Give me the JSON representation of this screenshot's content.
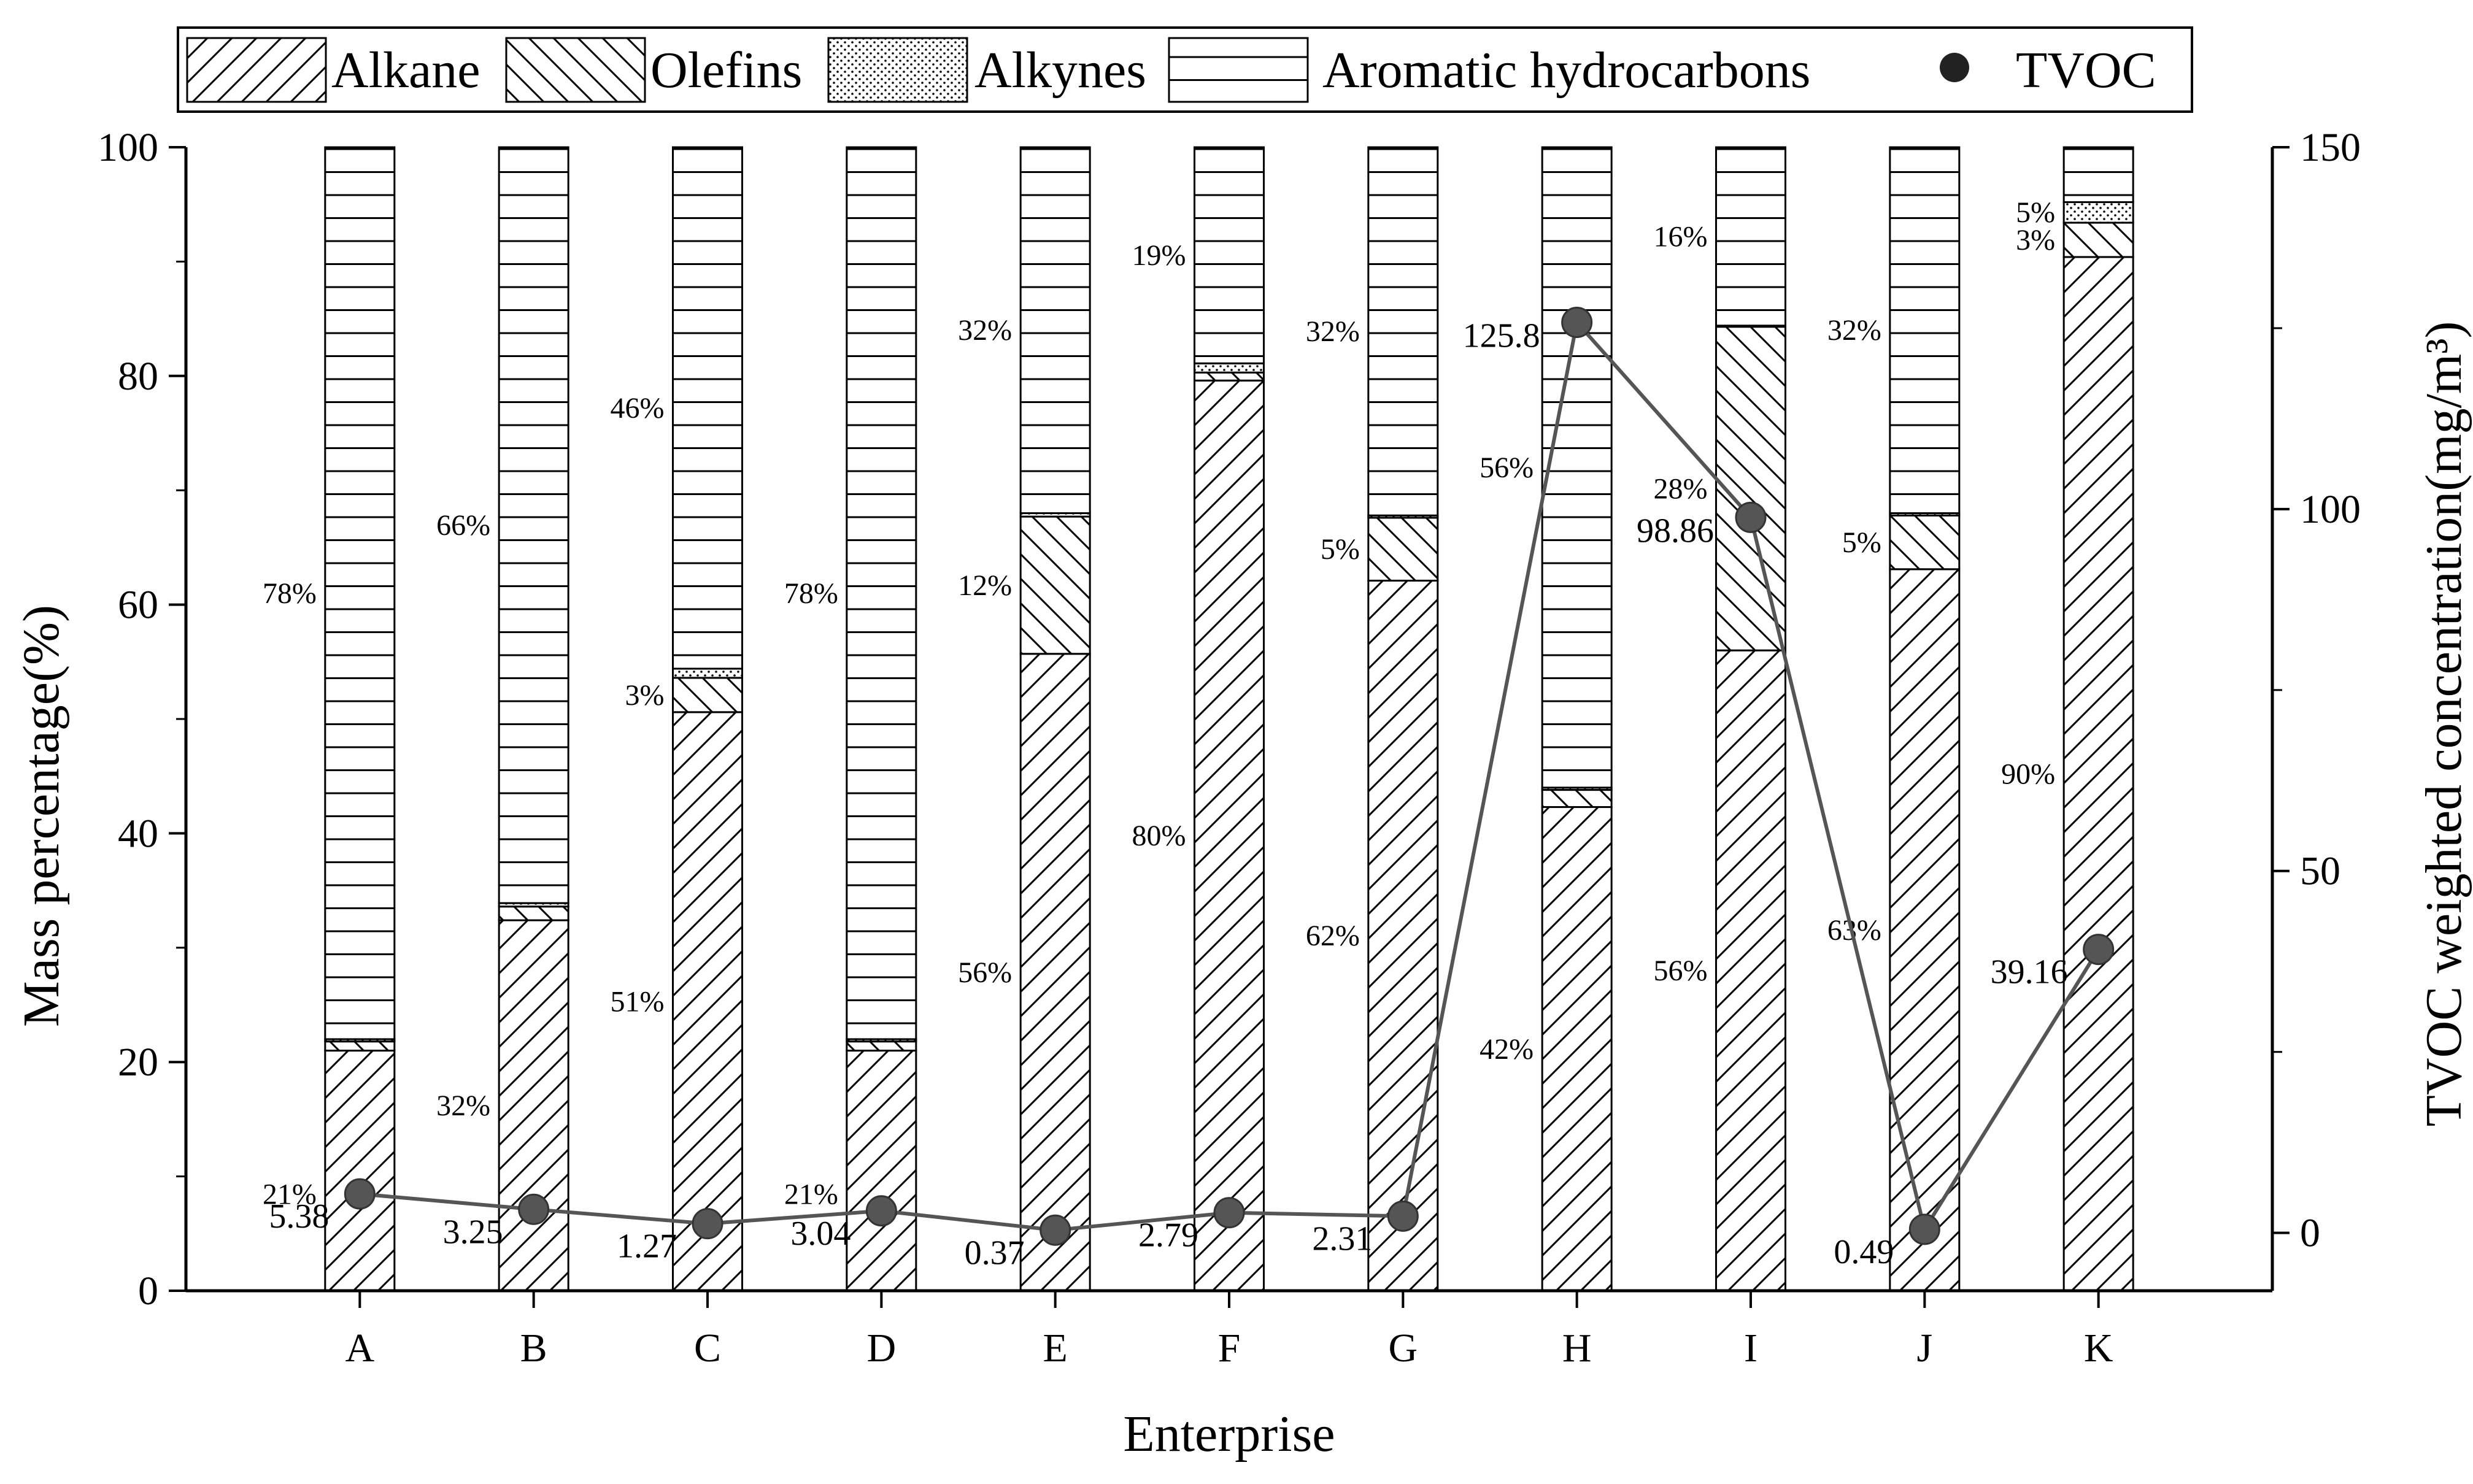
{
  "chart_data": {
    "type": "bar",
    "stacked": true,
    "xlabel": "Enterprise",
    "ylabel": "Mass percentage(%)",
    "y2label": "TVOC weighted concentration(mg/m³)",
    "ylim": [
      0,
      100
    ],
    "y2lim": [
      -8,
      150
    ],
    "yticks": [
      0,
      20,
      40,
      60,
      80,
      100
    ],
    "y2ticks": [
      0,
      50,
      100,
      150
    ],
    "grid": false,
    "legend_position": "top",
    "categories": [
      "A",
      "B",
      "C",
      "D",
      "E",
      "F",
      "G",
      "H",
      "I",
      "J",
      "K"
    ],
    "series": [
      {
        "name": "Alkane",
        "pattern": "diagonal-right",
        "values": [
          21,
          32.4,
          50.6,
          21,
          55.7,
          79.6,
          62.1,
          42.3,
          56,
          63.1,
          90.4
        ]
      },
      {
        "name": "Olefins",
        "pattern": "diagonal-left",
        "values": [
          0.8,
          1.2,
          3,
          0.8,
          12,
          0.7,
          5.5,
          1.5,
          28.3,
          4.7,
          3
        ]
      },
      {
        "name": "Alkynes",
        "pattern": "dots",
        "values": [
          0.2,
          0.3,
          0.8,
          0.2,
          0.3,
          0.8,
          0.2,
          0.2,
          0.1,
          0.2,
          1.8
        ]
      },
      {
        "name": "Aromatic hydrocarbons",
        "pattern": "horizontal",
        "values": [
          78,
          66.1,
          45.6,
          78,
          32,
          18.9,
          32.2,
          56,
          15.6,
          32,
          4.8
        ]
      }
    ],
    "tvoc": {
      "name": "TVOC",
      "values": [
        5.38,
        3.25,
        1.27,
        3.04,
        0.37,
        2.79,
        2.31,
        125.8,
        98.86,
        0.49,
        39.16
      ],
      "labels": [
        "5.38",
        "3.25",
        "1.27",
        "3.04",
        "0.37",
        "2.79",
        "2.31",
        "125.8",
        "98.86",
        "0.49",
        "39.16"
      ]
    },
    "bar_labels": [
      [
        "21%",
        "78%"
      ],
      [
        "32%",
        "66%"
      ],
      [
        "51%",
        "3%",
        "46%"
      ],
      [
        "21%",
        "78%"
      ],
      [
        "56%",
        "12%",
        "32%"
      ],
      [
        "80%",
        "19%"
      ],
      [
        "62%",
        "5%",
        "32%"
      ],
      [
        "42%",
        "56%"
      ],
      [
        "56%",
        "28%",
        "16%"
      ],
      [
        "63%",
        "5%",
        "32%"
      ],
      [
        "90%",
        "3%",
        "5%"
      ]
    ],
    "colors": {
      "bar_fill": "#ffffff",
      "stroke": "#000000",
      "line": "#555555",
      "marker": "#555555"
    }
  }
}
